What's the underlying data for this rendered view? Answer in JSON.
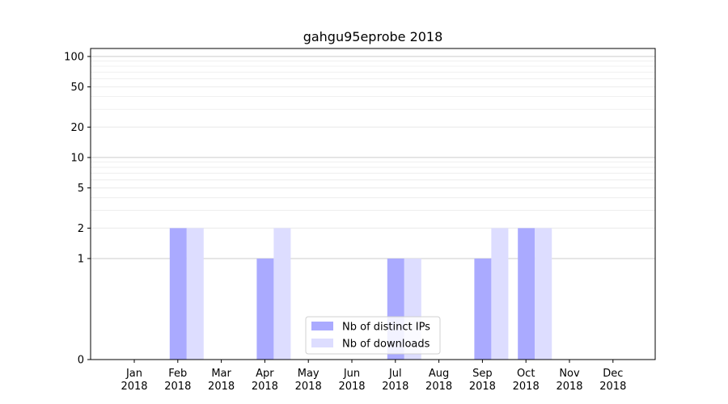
{
  "chart_data": {
    "type": "bar",
    "title": "gahgu95eprobe 2018",
    "xlabel": "",
    "ylabel": "",
    "yscale": "symlog",
    "ylim": [
      0,
      120
    ],
    "yticks": [
      0,
      1,
      2,
      5,
      10,
      20,
      50,
      100
    ],
    "categories": [
      [
        "Jan",
        "2018"
      ],
      [
        "Feb",
        "2018"
      ],
      [
        "Mar",
        "2018"
      ],
      [
        "Apr",
        "2018"
      ],
      [
        "May",
        "2018"
      ],
      [
        "Jun",
        "2018"
      ],
      [
        "Jul",
        "2018"
      ],
      [
        "Aug",
        "2018"
      ],
      [
        "Sep",
        "2018"
      ],
      [
        "Oct",
        "2018"
      ],
      [
        "Nov",
        "2018"
      ],
      [
        "Dec",
        "2018"
      ]
    ],
    "series": [
      {
        "name": "Nb of distinct IPs",
        "color": "#aaaaff",
        "values": [
          0,
          2,
          0,
          1,
          0,
          0,
          1,
          0,
          1,
          2,
          0,
          0
        ]
      },
      {
        "name": "Nb of downloads",
        "color": "#ddddff",
        "values": [
          0,
          2,
          0,
          2,
          0,
          0,
          1,
          0,
          2,
          2,
          0,
          0
        ]
      }
    ],
    "grid": true,
    "legend_position": "lower-center"
  }
}
